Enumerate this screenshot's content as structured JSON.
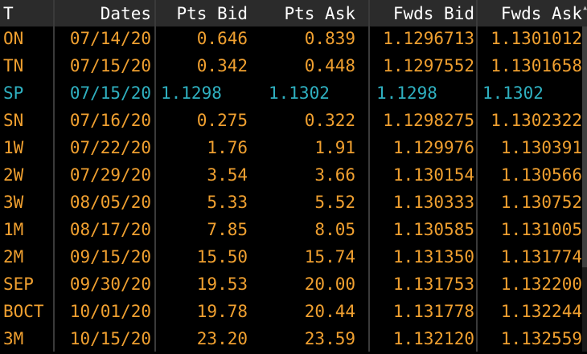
{
  "colors": {
    "text": "#f0a030",
    "highlight": "#2fb0c0",
    "header_text": "#ffffff",
    "header_bg": "#2b2b2b"
  },
  "headers": [
    "T",
    "Dates",
    "Pts Bid",
    "Pts Ask",
    "Fwds Bid",
    "Fwds Ask"
  ],
  "rows": [
    [
      "ON",
      "07/14/20",
      "0.646",
      "0.839",
      "1.1296713",
      "1.1301012"
    ],
    [
      "TN",
      "07/15/20",
      "0.342",
      "0.448",
      "1.1297552",
      "1.1301658"
    ],
    [
      "SP",
      "07/15/20",
      "1.1298",
      "1.1302",
      "1.1298",
      "1.1302"
    ],
    [
      "SN",
      "07/16/20",
      "0.275",
      "0.322",
      "1.1298275",
      "1.1302322"
    ],
    [
      "1W",
      "07/22/20",
      "1.76",
      "1.91",
      "1.129976",
      "1.130391"
    ],
    [
      "2W",
      "07/29/20",
      "3.54",
      "3.66",
      "1.130154",
      "1.130566"
    ],
    [
      "3W",
      "08/05/20",
      "5.33",
      "5.52",
      "1.130333",
      "1.130752"
    ],
    [
      "1M",
      "08/17/20",
      "7.85",
      "8.05",
      "1.130585",
      "1.131005"
    ],
    [
      "2M",
      "09/15/20",
      "15.50",
      "15.74",
      "1.131350",
      "1.131774"
    ],
    [
      "SEP",
      "09/30/20",
      "19.53",
      "20.00",
      "1.131753",
      "1.132200"
    ],
    [
      "BOCT",
      "10/01/20",
      "19.78",
      "20.44",
      "1.131778",
      "1.132244"
    ],
    [
      "3M",
      "10/15/20",
      "23.20",
      "23.59",
      "1.132120",
      "1.132559"
    ]
  ],
  "highlight_row_index": 2
}
